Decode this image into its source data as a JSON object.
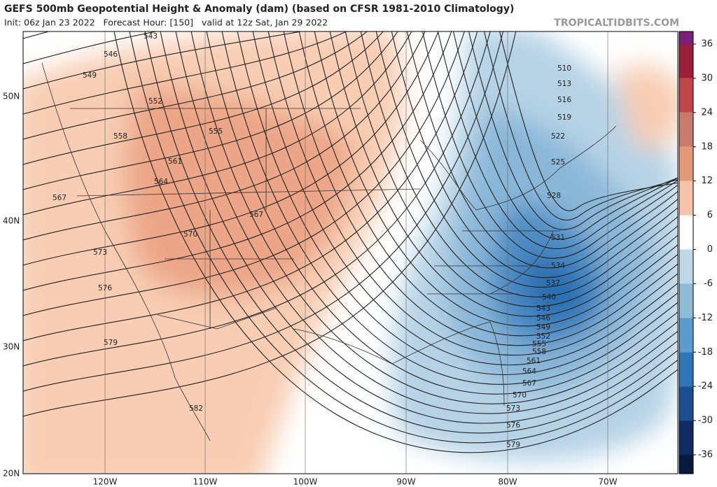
{
  "header": {
    "title": "GEFS 500mb Geopotential Height & Anomaly (dam) (based on CFSR 1981-2010 Climatology)",
    "subtitle": "Init: 06z Jan 23 2022   Forecast Hour: [150]   valid at 12z Sat, Jan 29 2022",
    "site": "TROPICALTIDBITS.COM"
  },
  "map": {
    "lat_labels": [
      "50N",
      "40N",
      "30N",
      "20N"
    ],
    "lon_labels": [
      "120W",
      "110W",
      "100W",
      "90W",
      "80W",
      "70W"
    ],
    "contour_labels": [
      "543",
      "546",
      "549",
      "552",
      "558",
      "555",
      "561",
      "564",
      "567",
      "567",
      "570",
      "573",
      "576",
      "579",
      "582",
      "510",
      "513",
      "516",
      "519",
      "522",
      "525",
      "528",
      "531",
      "534",
      "537",
      "540",
      "543",
      "546",
      "549",
      "552",
      "555",
      "558",
      "561",
      "564",
      "567",
      "570",
      "573",
      "576",
      "579"
    ]
  },
  "colorbar": {
    "ticks": [
      36,
      30,
      24,
      18,
      12,
      6,
      0,
      -6,
      -12,
      -18,
      -24,
      -30,
      -36
    ],
    "colors": [
      "#9c1f3a",
      "#c0464a",
      "#c97a6a",
      "#e59878",
      "#f6c3a8",
      "#ffffff",
      "#bfd8e8",
      "#8fbbd9",
      "#5c9bcb",
      "#2f76b8",
      "#1c4f92",
      "#0e2c63"
    ]
  }
}
